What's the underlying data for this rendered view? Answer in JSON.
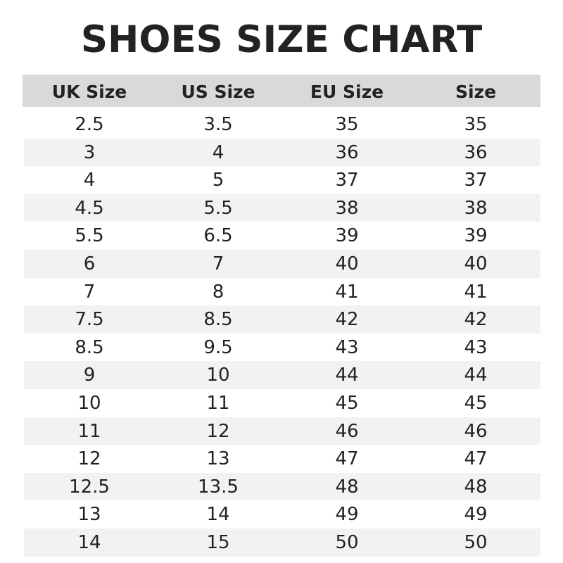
{
  "chart_data": {
    "type": "table",
    "title": "SHOES SIZE CHART",
    "columns": [
      "UK Size",
      "US Size",
      "EU Size",
      "Size"
    ],
    "rows": [
      [
        "2.5",
        "3.5",
        "35",
        "35"
      ],
      [
        "3",
        "4",
        "36",
        "36"
      ],
      [
        "4",
        "5",
        "37",
        "37"
      ],
      [
        "4.5",
        "5.5",
        "38",
        "38"
      ],
      [
        "5.5",
        "6.5",
        "39",
        "39"
      ],
      [
        "6",
        "7",
        "40",
        "40"
      ],
      [
        "7",
        "8",
        "41",
        "41"
      ],
      [
        "7.5",
        "8.5",
        "42",
        "42"
      ],
      [
        "8.5",
        "9.5",
        "43",
        "43"
      ],
      [
        "9",
        "10",
        "44",
        "44"
      ],
      [
        "10",
        "11",
        "45",
        "45"
      ],
      [
        "11",
        "12",
        "46",
        "46"
      ],
      [
        "12",
        "13",
        "47",
        "47"
      ],
      [
        "12.5",
        "13.5",
        "48",
        "48"
      ],
      [
        "13",
        "14",
        "49",
        "49"
      ],
      [
        "14",
        "15",
        "50",
        "50"
      ]
    ],
    "colors": {
      "header_bg": "#d9d9d9",
      "stripe_bg": "#f2f2f2",
      "text": "#222222"
    }
  }
}
